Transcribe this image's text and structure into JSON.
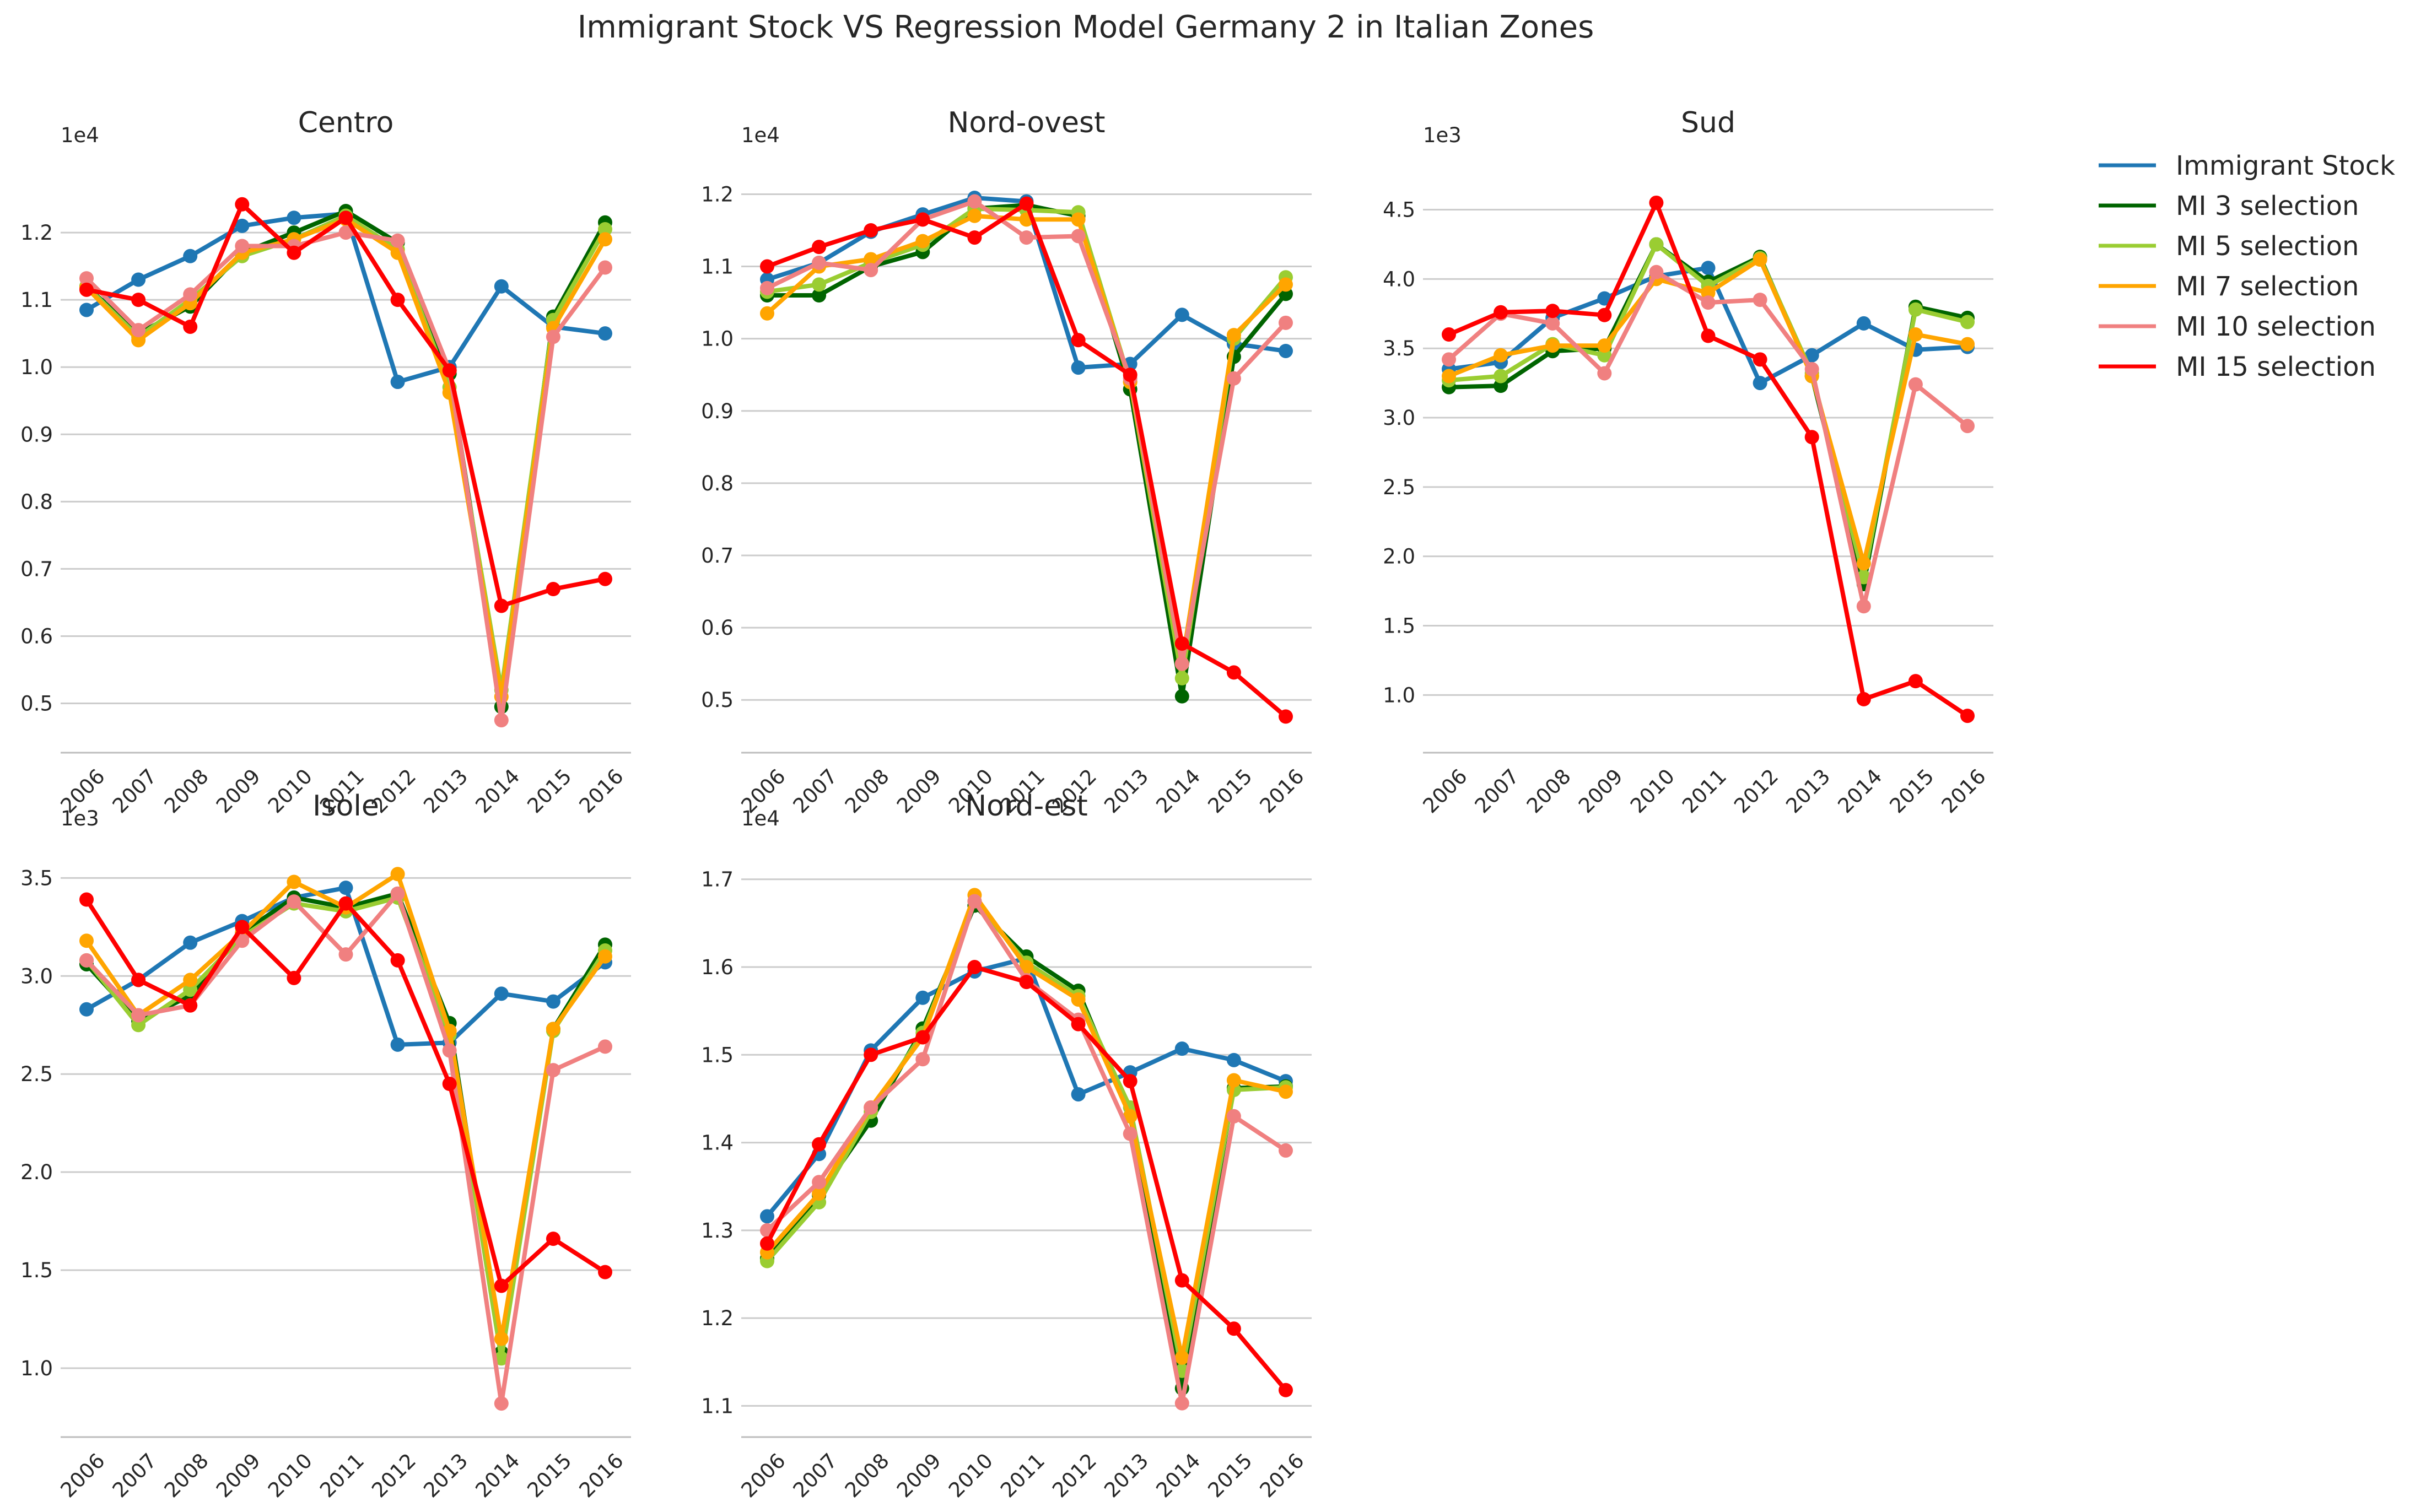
{
  "title": "Immigrant Stock VS Regression Model Germany 2 in Italian Zones",
  "legend": {
    "placement": "upper-right",
    "entries": [
      {
        "label": "Immigrant Stock",
        "color": "#1f77b4"
      },
      {
        "label": "MI 3 selection",
        "color": "#006400"
      },
      {
        "label": "MI 5 selection",
        "color": "#9acd32"
      },
      {
        "label": "MI 7 selection",
        "color": "#ffa500"
      },
      {
        "label": "MI 10 selection",
        "color": "#f08080"
      },
      {
        "label": "MI 15 selection",
        "color": "#ff0000"
      }
    ]
  },
  "chart_data": [
    {
      "type": "line",
      "title": "Centro",
      "exponent_label": "1e4",
      "grid": "horizontal",
      "ylim": [
        0.43,
        1.3
      ],
      "yticks": [
        0.5,
        0.6,
        0.7,
        0.8,
        0.9,
        1.0,
        1.1,
        1.2
      ],
      "ytick_labels": [
        "0.5",
        "0.6",
        "0.7",
        "0.8",
        "0.9",
        "1.0",
        "1.1",
        "1.2"
      ],
      "categories": [
        "2006",
        "2007",
        "2008",
        "2009",
        "2010",
        "2011",
        "2012",
        "2013",
        "2014",
        "2015",
        "2016"
      ],
      "series": [
        {
          "name": "Immigrant Stock",
          "values": [
            1.085,
            1.13,
            1.165,
            1.21,
            1.222,
            1.228,
            0.978,
            1.0,
            1.12,
            1.06,
            1.05
          ]
        },
        {
          "name": "MI 3 selection",
          "values": [
            1.12,
            1.05,
            1.09,
            1.17,
            1.2,
            1.232,
            1.185,
            0.99,
            0.495,
            1.075,
            1.215
          ]
        },
        {
          "name": "MI 5 selection",
          "values": [
            1.12,
            1.045,
            1.1,
            1.165,
            1.19,
            1.225,
            1.175,
            0.97,
            0.52,
            1.07,
            1.205
          ]
        },
        {
          "name": "MI 7 selection",
          "values": [
            1.118,
            1.04,
            1.095,
            1.17,
            1.19,
            1.22,
            1.17,
            0.962,
            0.51,
            1.058,
            1.19
          ]
        },
        {
          "name": "MI 10 selection",
          "values": [
            1.132,
            1.055,
            1.108,
            1.18,
            1.18,
            1.2,
            1.188,
            0.995,
            0.475,
            1.045,
            1.148
          ]
        },
        {
          "name": "MI 15 selection",
          "values": [
            1.115,
            1.1,
            1.06,
            1.242,
            1.17,
            1.222,
            1.1,
            0.995,
            0.645,
            0.67,
            0.685
          ]
        }
      ]
    },
    {
      "type": "line",
      "title": "Nord-ovest",
      "exponent_label": "1e4",
      "grid": "horizontal",
      "ylim": [
        0.43,
        1.24
      ],
      "yticks": [
        0.5,
        0.6,
        0.7,
        0.8,
        0.9,
        1.0,
        1.1,
        1.2
      ],
      "ytick_labels": [
        "0.5",
        "0.6",
        "0.7",
        "0.8",
        "0.9",
        "1.0",
        "1.1",
        "1.2"
      ],
      "categories": [
        "2006",
        "2007",
        "2008",
        "2009",
        "2010",
        "2011",
        "2012",
        "2013",
        "2014",
        "2015",
        "2016"
      ],
      "series": [
        {
          "name": "Immigrant Stock",
          "values": [
            1.082,
            1.105,
            1.148,
            1.172,
            1.195,
            1.19,
            0.96,
            0.965,
            1.033,
            0.993,
            0.983
          ]
        },
        {
          "name": "MI 3 selection",
          "values": [
            1.06,
            1.06,
            1.1,
            1.12,
            1.18,
            1.185,
            1.17,
            0.93,
            0.505,
            0.975,
            1.062
          ]
        },
        {
          "name": "MI 5 selection",
          "values": [
            1.065,
            1.075,
            1.105,
            1.13,
            1.18,
            1.178,
            1.175,
            0.94,
            0.53,
            1.0,
            1.085
          ]
        },
        {
          "name": "MI 7 selection",
          "values": [
            1.035,
            1.1,
            1.11,
            1.135,
            1.17,
            1.165,
            1.165,
            0.94,
            0.55,
            1.005,
            1.075
          ]
        },
        {
          "name": "MI 10 selection",
          "values": [
            1.07,
            1.105,
            1.095,
            1.165,
            1.19,
            1.14,
            1.142,
            0.945,
            0.55,
            0.945,
            1.022
          ]
        },
        {
          "name": "MI 15 selection",
          "values": [
            1.1,
            1.127,
            1.15,
            1.165,
            1.14,
            1.187,
            0.998,
            0.95,
            0.578,
            0.538,
            0.477
          ]
        }
      ]
    },
    {
      "type": "line",
      "title": "Sud",
      "exponent_label": "1e3",
      "grid": "horizontal",
      "ylim": [
        0.6,
        4.82
      ],
      "yticks": [
        1.0,
        1.5,
        2.0,
        2.5,
        3.0,
        3.5,
        4.0,
        4.5
      ],
      "ytick_labels": [
        "1.0",
        "1.5",
        "2.0",
        "2.5",
        "3.0",
        "3.5",
        "4.0",
        "4.5"
      ],
      "categories": [
        "2006",
        "2007",
        "2008",
        "2009",
        "2010",
        "2011",
        "2012",
        "2013",
        "2014",
        "2015",
        "2016"
      ],
      "series": [
        {
          "name": "Immigrant Stock",
          "values": [
            3.35,
            3.4,
            3.72,
            3.86,
            4.02,
            4.08,
            3.25,
            3.45,
            3.68,
            3.49,
            3.51
          ]
        },
        {
          "name": "MI 3 selection",
          "values": [
            3.22,
            3.23,
            3.48,
            3.5,
            4.25,
            3.98,
            4.16,
            3.3,
            1.8,
            3.8,
            3.72
          ]
        },
        {
          "name": "MI 5 selection",
          "values": [
            3.27,
            3.3,
            3.53,
            3.45,
            4.25,
            3.95,
            4.15,
            3.32,
            1.85,
            3.78,
            3.69
          ]
        },
        {
          "name": "MI 7 selection",
          "values": [
            3.3,
            3.45,
            3.52,
            3.52,
            4.0,
            3.9,
            4.14,
            3.3,
            1.95,
            3.6,
            3.53
          ]
        },
        {
          "name": "MI 10 selection",
          "values": [
            3.42,
            3.75,
            3.68,
            3.32,
            4.05,
            3.83,
            3.85,
            3.35,
            1.64,
            3.24,
            2.94
          ]
        },
        {
          "name": "MI 15 selection",
          "values": [
            3.6,
            3.76,
            3.77,
            3.74,
            4.55,
            3.59,
            3.42,
            2.86,
            0.97,
            1.1,
            0.85
          ]
        }
      ]
    },
    {
      "type": "line",
      "title": "Isole",
      "exponent_label": "1e3",
      "grid": "horizontal",
      "ylim": [
        0.66,
        3.65
      ],
      "yticks": [
        1.0,
        1.5,
        2.0,
        2.5,
        3.0,
        3.5
      ],
      "ytick_labels": [
        "1.0",
        "1.5",
        "2.0",
        "2.5",
        "3.0",
        "3.5"
      ],
      "categories": [
        "2006",
        "2007",
        "2008",
        "2009",
        "2010",
        "2011",
        "2012",
        "2013",
        "2014",
        "2015",
        "2016"
      ],
      "series": [
        {
          "name": "Immigrant Stock",
          "values": [
            2.83,
            2.98,
            3.17,
            3.28,
            3.4,
            3.45,
            2.65,
            2.66,
            2.91,
            2.87,
            3.07
          ]
        },
        {
          "name": "MI 3 selection",
          "values": [
            3.06,
            2.77,
            2.9,
            3.22,
            3.4,
            3.35,
            3.42,
            2.76,
            1.08,
            2.73,
            3.16
          ]
        },
        {
          "name": "MI 5 selection",
          "values": [
            3.08,
            2.75,
            2.93,
            3.2,
            3.37,
            3.33,
            3.4,
            2.7,
            1.05,
            2.72,
            3.13
          ]
        },
        {
          "name": "MI 7 selection",
          "values": [
            3.18,
            2.8,
            2.98,
            3.22,
            3.48,
            3.35,
            3.52,
            2.72,
            1.15,
            2.73,
            3.1
          ]
        },
        {
          "name": "MI 10 selection",
          "values": [
            3.08,
            2.8,
            2.85,
            3.18,
            3.38,
            3.11,
            3.42,
            2.62,
            0.82,
            2.52,
            2.64
          ]
        },
        {
          "name": "MI 15 selection",
          "values": [
            3.39,
            2.98,
            2.85,
            3.25,
            2.99,
            3.37,
            3.08,
            2.45,
            1.42,
            1.66,
            1.49
          ]
        }
      ]
    },
    {
      "type": "line",
      "title": "Nord-est",
      "exponent_label": "1e4",
      "grid": "horizontal",
      "ylim": [
        1.067,
        1.735
      ],
      "yticks": [
        1.1,
        1.2,
        1.3,
        1.4,
        1.5,
        1.6,
        1.7
      ],
      "ytick_labels": [
        "1.1",
        "1.2",
        "1.3",
        "1.4",
        "1.5",
        "1.6",
        "1.7"
      ],
      "categories": [
        "2006",
        "2007",
        "2008",
        "2009",
        "2010",
        "2011",
        "2012",
        "2013",
        "2014",
        "2015",
        "2016"
      ],
      "series": [
        {
          "name": "Immigrant Stock",
          "values": [
            1.316,
            1.387,
            1.505,
            1.565,
            1.595,
            1.61,
            1.455,
            1.48,
            1.507,
            1.494,
            1.47
          ]
        },
        {
          "name": "MI 3 selection",
          "values": [
            1.268,
            1.34,
            1.425,
            1.53,
            1.67,
            1.612,
            1.573,
            1.43,
            1.12,
            1.462,
            1.464
          ]
        },
        {
          "name": "MI 5 selection",
          "values": [
            1.265,
            1.332,
            1.435,
            1.525,
            1.675,
            1.605,
            1.567,
            1.44,
            1.14,
            1.46,
            1.463
          ]
        },
        {
          "name": "MI 7 selection",
          "values": [
            1.275,
            1.342,
            1.44,
            1.52,
            1.682,
            1.6,
            1.563,
            1.43,
            1.155,
            1.471,
            1.458
          ]
        },
        {
          "name": "MI 10 selection",
          "values": [
            1.3,
            1.355,
            1.44,
            1.495,
            1.675,
            1.585,
            1.54,
            1.41,
            1.103,
            1.43,
            1.391
          ]
        },
        {
          "name": "MI 15 selection",
          "values": [
            1.285,
            1.398,
            1.5,
            1.52,
            1.6,
            1.583,
            1.535,
            1.47,
            1.243,
            1.188,
            1.118
          ]
        }
      ]
    }
  ]
}
